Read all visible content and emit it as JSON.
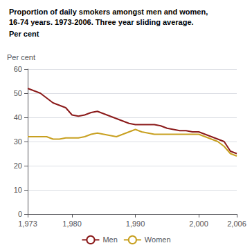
{
  "chart_data": {
    "type": "line",
    "title": "Proportion of daily smokers amongst men and women,\n16-74 years. 1973-2006. Three year sliding average.",
    "subtitle": "Per cent",
    "y_label": "Per cent",
    "x": [
      1973,
      1974,
      1975,
      1976,
      1977,
      1978,
      1979,
      1980,
      1981,
      1982,
      1983,
      1984,
      1985,
      1986,
      1987,
      1988,
      1989,
      1990,
      1991,
      1992,
      1993,
      1994,
      1995,
      1996,
      1997,
      1998,
      1999,
      2000,
      2001,
      2002,
      2003,
      2004,
      2005,
      2006
    ],
    "series": [
      {
        "name": "Men",
        "color": "#8B1A1A",
        "values": [
          52,
          51,
          50,
          48,
          46,
          45,
          44,
          41,
          40.5,
          41,
          42,
          42.5,
          41.5,
          40.5,
          39.5,
          38.5,
          37.5,
          37,
          37,
          37,
          37,
          36.5,
          35.5,
          35,
          34.5,
          34.5,
          34,
          34,
          33,
          32,
          31,
          30,
          26,
          25
        ]
      },
      {
        "name": "Women",
        "color": "#C8A020",
        "values": [
          32,
          32,
          32,
          32,
          31,
          31,
          31.5,
          31.5,
          31.5,
          32,
          33,
          33.5,
          33,
          32.5,
          32,
          33,
          34,
          35,
          34,
          33.5,
          33,
          33,
          33,
          33,
          33,
          33,
          33,
          33,
          32,
          31,
          30,
          28,
          25,
          24
        ]
      }
    ],
    "xlim": [
      1973,
      2006
    ],
    "xticks": [
      1973,
      1980,
      1990,
      2000,
      2006
    ],
    "ylim": [
      0,
      60
    ],
    "yticks": [
      0,
      10,
      20,
      30,
      40,
      50,
      60
    ],
    "grid": true,
    "legend": "bottom"
  }
}
